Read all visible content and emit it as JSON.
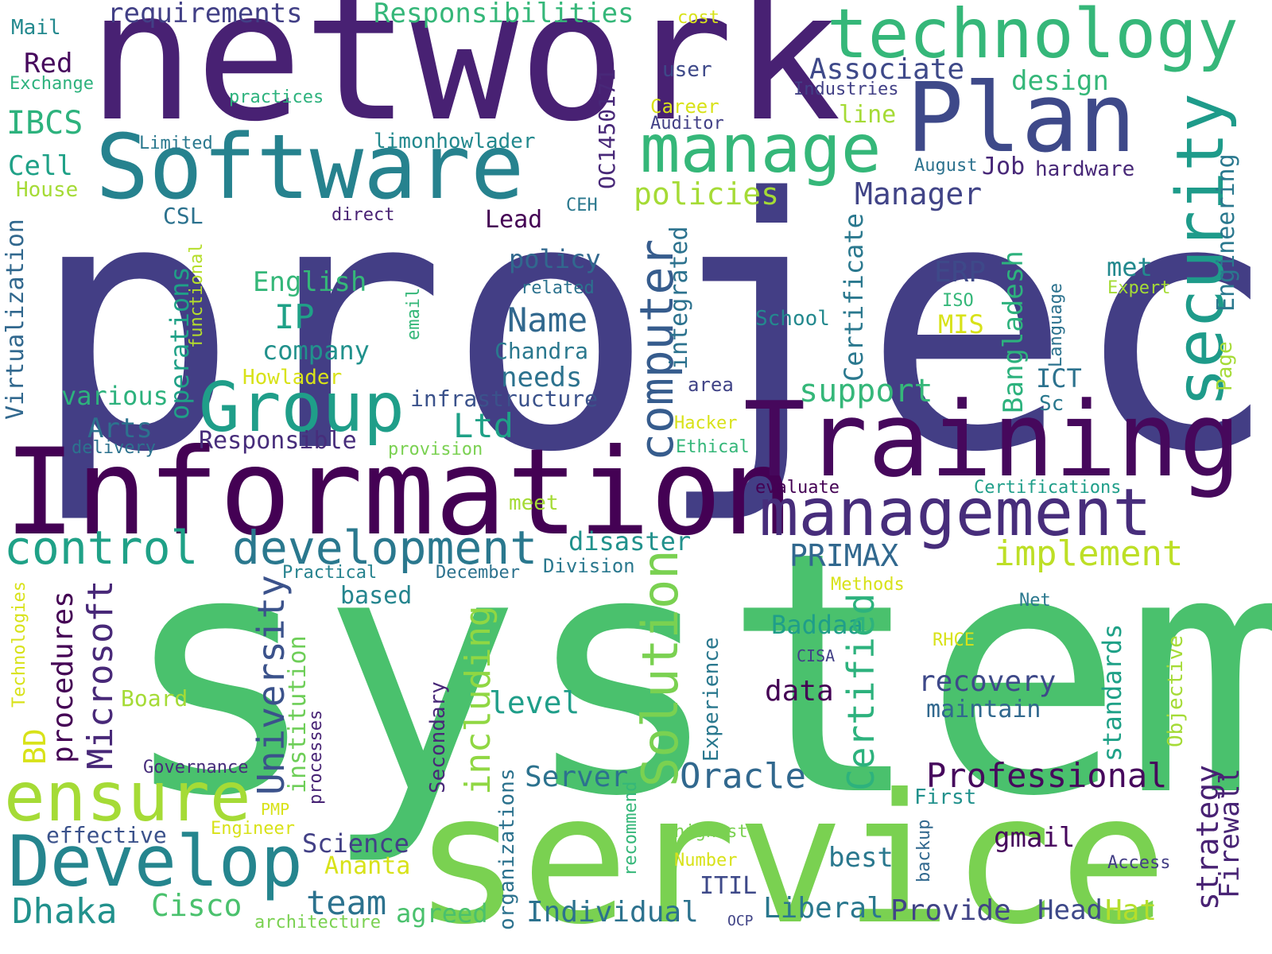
{
  "word_cloud": {
    "words": [
      {
        "text": "project",
        "color": "#433e85"
      },
      {
        "text": "system",
        "color": "#4ac16d"
      },
      {
        "text": "network",
        "color": "#482173"
      },
      {
        "text": "service",
        "color": "#7ad151"
      },
      {
        "text": "Information",
        "color": "#440154"
      },
      {
        "text": "Training",
        "color": "#46085c"
      },
      {
        "text": "Software",
        "color": "#26828e"
      },
      {
        "text": "technology",
        "color": "#35b779"
      },
      {
        "text": "Plan",
        "color": "#3e4989"
      },
      {
        "text": "management",
        "color": "#472d7b"
      },
      {
        "text": "manage",
        "color": "#35b779"
      },
      {
        "text": "Group",
        "color": "#1f9e89"
      },
      {
        "text": "Develop",
        "color": "#25858e"
      },
      {
        "text": "ensure",
        "color": "#a5db36"
      },
      {
        "text": "development",
        "color": "#2a788e"
      },
      {
        "text": "control",
        "color": "#1fa187"
      },
      {
        "text": "security",
        "color": "#1e9b8a"
      },
      {
        "text": "computer",
        "color": "#365c8d"
      },
      {
        "text": "Solution",
        "color": "#7ad151"
      },
      {
        "text": "Oracle",
        "color": "#31688e"
      },
      {
        "text": "Professional",
        "color": "#46085c"
      },
      {
        "text": "implement",
        "color": "#bddf26"
      },
      {
        "text": "recovery",
        "color": "#3e4989"
      },
      {
        "text": "University",
        "color": "#3b528b"
      },
      {
        "text": "Microsoft",
        "color": "#482878"
      },
      {
        "text": "Certified",
        "color": "#2db27d"
      },
      {
        "text": "including",
        "color": "#90d743"
      },
      {
        "text": "procedures",
        "color": "#440154"
      },
      {
        "text": "Dhaka",
        "color": "#21918c"
      },
      {
        "text": "Cisco",
        "color": "#4ac16d"
      },
      {
        "text": "team",
        "color": "#2c728e"
      },
      {
        "text": "Individual",
        "color": "#2c728e"
      },
      {
        "text": "Liberal",
        "color": "#2a788e"
      },
      {
        "text": "Provide",
        "color": "#414487"
      },
      {
        "text": "Head",
        "color": "#3e4989"
      },
      {
        "text": "Hat",
        "color": "#b5de2b"
      },
      {
        "text": "agreed",
        "color": "#4ac16d"
      },
      {
        "text": "Ananta",
        "color": "#d8e219"
      },
      {
        "text": "Science",
        "color": "#424086"
      },
      {
        "text": "best",
        "color": "#2a788e"
      },
      {
        "text": "gmail",
        "color": "#46085c"
      },
      {
        "text": "strategy",
        "color": "#482173"
      },
      {
        "text": "Access",
        "color": "#433e85"
      },
      {
        "text": "Firewall",
        "color": "#482475"
      },
      {
        "text": "Number",
        "color": "#d8e219"
      },
      {
        "text": "highest",
        "color": "#7ad151"
      },
      {
        "text": "Engineer",
        "color": "#d8e219"
      },
      {
        "text": "PMP",
        "color": "#d8e219"
      },
      {
        "text": "effective",
        "color": "#3b528b"
      },
      {
        "text": "Governance",
        "color": "#472d7b"
      },
      {
        "text": "architecture",
        "color": "#7ad151"
      },
      {
        "text": "OCP",
        "color": "#414487"
      },
      {
        "text": "ITIL",
        "color": "#3e4989"
      },
      {
        "text": "First",
        "color": "#21918c"
      },
      {
        "text": "maintain",
        "color": "#31688e"
      },
      {
        "text": "data",
        "color": "#440154"
      },
      {
        "text": "standards",
        "color": "#1fa187"
      },
      {
        "text": "Objective",
        "color": "#a5db36"
      },
      {
        "text": "Experience",
        "color": "#2a788e"
      },
      {
        "text": "recommend",
        "color": "#35b779"
      },
      {
        "text": "backup",
        "color": "#31688e"
      },
      {
        "text": "organizations",
        "color": "#2c728e"
      },
      {
        "text": "Secondary",
        "color": "#482878"
      },
      {
        "text": "processes",
        "color": "#482475"
      },
      {
        "text": "institution",
        "color": "#6ece58"
      },
      {
        "text": "Board",
        "color": "#a5db36"
      },
      {
        "text": "BD",
        "color": "#d8e219"
      },
      {
        "text": "Technologies",
        "color": "#d8e219"
      },
      {
        "text": "Server",
        "color": "#2c728e"
      },
      {
        "text": "level",
        "color": "#1f9e89"
      },
      {
        "text": "Baddaa",
        "color": "#1f9e89"
      },
      {
        "text": "CISA",
        "color": "#424086"
      },
      {
        "text": "RHCE",
        "color": "#d8e219"
      },
      {
        "text": "Net",
        "color": "#2a788e"
      },
      {
        "text": "Methods",
        "color": "#d8e219"
      },
      {
        "text": "based",
        "color": "#25858e"
      },
      {
        "text": "Practical",
        "color": "#26828e"
      },
      {
        "text": "December",
        "color": "#2c728e"
      },
      {
        "text": "Division",
        "color": "#2a788e"
      },
      {
        "text": "PRIMAX",
        "color": "#31688e"
      },
      {
        "text": "disaster",
        "color": "#21918c"
      },
      {
        "text": "meet",
        "color": "#a5db36"
      },
      {
        "text": "evaluate",
        "color": "#440154"
      },
      {
        "text": "Certifications",
        "color": "#1f9e89"
      },
      {
        "text": "Ethical",
        "color": "#35b779"
      },
      {
        "text": "Hacker",
        "color": "#d8e219"
      },
      {
        "text": "provision",
        "color": "#7ad151"
      },
      {
        "text": "delivery",
        "color": "#2c728e"
      },
      {
        "text": "Arts",
        "color": "#2c728e"
      },
      {
        "text": "Responsible",
        "color": "#472d7b"
      },
      {
        "text": "Ltd",
        "color": "#1fa187"
      },
      {
        "text": "infrastructure",
        "color": "#3b528b"
      },
      {
        "text": "various",
        "color": "#2db27d"
      },
      {
        "text": "Howlader",
        "color": "#d8e219"
      },
      {
        "text": "needs",
        "color": "#2c728e"
      },
      {
        "text": "Chandra",
        "color": "#2a788e"
      },
      {
        "text": "area",
        "color": "#414487"
      },
      {
        "text": "support",
        "color": "#35b779"
      },
      {
        "text": "Sc",
        "color": "#2a788e"
      },
      {
        "text": "ICT",
        "color": "#2c728e"
      },
      {
        "text": "MIS",
        "color": "#d8e219"
      },
      {
        "text": "ISO",
        "color": "#35b779"
      },
      {
        "text": "ERP",
        "color": "#3e4989"
      },
      {
        "text": "met",
        "color": "#23898e"
      },
      {
        "text": "Expert",
        "color": "#a5db36"
      },
      {
        "text": "School",
        "color": "#23898e"
      },
      {
        "text": "Name",
        "color": "#31688e"
      },
      {
        "text": "IP",
        "color": "#1fa187"
      },
      {
        "text": "company",
        "color": "#21918c"
      },
      {
        "text": "English",
        "color": "#35b779"
      },
      {
        "text": "related",
        "color": "#2c728e"
      },
      {
        "text": "policy",
        "color": "#31688e"
      },
      {
        "text": "Lead",
        "color": "#440154"
      },
      {
        "text": "CSL",
        "color": "#2c728e"
      },
      {
        "text": "direct",
        "color": "#482173"
      },
      {
        "text": "CEH",
        "color": "#2a788e"
      },
      {
        "text": "Manager",
        "color": "#414487"
      },
      {
        "text": "policies",
        "color": "#a5db36"
      },
      {
        "text": "Job",
        "color": "#482878"
      },
      {
        "text": "hardware",
        "color": "#482878"
      },
      {
        "text": "August",
        "color": "#2c728e"
      },
      {
        "text": "Auditor",
        "color": "#424086"
      },
      {
        "text": "Career",
        "color": "#d8e219"
      },
      {
        "text": "line",
        "color": "#a5db36"
      },
      {
        "text": "user",
        "color": "#3e4989"
      },
      {
        "text": "design",
        "color": "#35b779"
      },
      {
        "text": "Industries",
        "color": "#424086"
      },
      {
        "text": "Associate",
        "color": "#3e4989"
      },
      {
        "text": "Responsibilities",
        "color": "#35b779"
      },
      {
        "text": "requirements",
        "color": "#424086"
      },
      {
        "text": "cost",
        "color": "#d8e219"
      },
      {
        "text": "Mail",
        "color": "#23898e"
      },
      {
        "text": "Red",
        "color": "#46085c"
      },
      {
        "text": "Exchange",
        "color": "#2db27d"
      },
      {
        "text": "IBCS",
        "color": "#2db27d"
      },
      {
        "text": "practices",
        "color": "#2db27d"
      },
      {
        "text": "Limited",
        "color": "#2a788e"
      },
      {
        "text": "limonhowlader",
        "color": "#23898e"
      },
      {
        "text": "Cell",
        "color": "#1fa187"
      },
      {
        "text": "House",
        "color": "#a5db36"
      },
      {
        "text": "Virtualization",
        "color": "#31688e"
      },
      {
        "text": "OC1450171",
        "color": "#482878"
      },
      {
        "text": "operations",
        "color": "#1fa187"
      },
      {
        "text": "functional",
        "color": "#b5de2b"
      },
      {
        "text": "email",
        "color": "#35b779"
      },
      {
        "text": "integrated",
        "color": "#2c728e"
      },
      {
        "text": "Certificate",
        "color": "#2a788e"
      },
      {
        "text": "Bangladesh",
        "color": "#2db27d"
      },
      {
        "text": "Language",
        "color": "#2c728e"
      },
      {
        "text": "Page",
        "color": "#a5db36"
      },
      {
        "text": "Engineering",
        "color": "#2a788e"
      }
    ]
  }
}
